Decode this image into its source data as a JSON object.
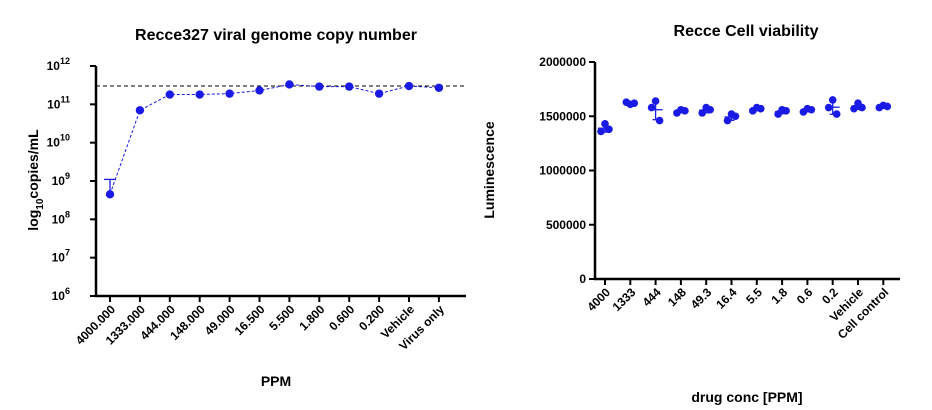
{
  "chart_data": [
    {
      "type": "line",
      "title": "Recce327 viral genome copy number",
      "xlabel": "PPM",
      "ylabel": "log10copies/mL",
      "ylabel_prefix": "log",
      "ylabel_sub": "10",
      "ylabel_suffix": "copies/mL",
      "y_scale": "log",
      "ylim": [
        1000000,
        1000000000000
      ],
      "y_ticks": [
        {
          "value": 1000000,
          "base": "10",
          "exp": "6"
        },
        {
          "value": 10000000,
          "base": "10",
          "exp": "7"
        },
        {
          "value": 100000000,
          "base": "10",
          "exp": "8"
        },
        {
          "value": 1000000000,
          "base": "10",
          "exp": "9"
        },
        {
          "value": 10000000000,
          "base": "10",
          "exp": "10"
        },
        {
          "value": 100000000000,
          "base": "10",
          "exp": "11"
        },
        {
          "value": 1000000000000,
          "base": "10",
          "exp": "12"
        }
      ],
      "categories": [
        "4000.000",
        "1333.000",
        "444.000",
        "148.000",
        "49.000",
        "16.500",
        "5.500",
        "1.800",
        "0.600",
        "0.200",
        "Vehicle",
        "Virus only"
      ],
      "values": [
        450000000,
        70000000000,
        180000000000,
        180000000000,
        190000000000,
        230000000000,
        330000000000,
        290000000000,
        290000000000,
        190000000000,
        300000000000,
        270000000000
      ],
      "error_upper": [
        1100000000,
        null,
        null,
        null,
        null,
        null,
        null,
        null,
        null,
        null,
        null,
        null
      ],
      "reference_line": 300000000000,
      "grid": false
    },
    {
      "type": "scatter",
      "title": "Recce Cell viability",
      "xlabel": "drug conc [PPM]",
      "ylabel": "Luminescence",
      "ylim": [
        0,
        2000000
      ],
      "y_ticks": [
        "0",
        "500000",
        "1000000",
        "1500000",
        "2000000"
      ],
      "y_tick_values": [
        0,
        500000,
        1000000,
        1500000,
        2000000
      ],
      "categories": [
        "4000",
        "1333",
        "444",
        "148",
        "49.3",
        "16.4",
        "5.5",
        "1.8",
        "0.6",
        "0.2",
        "Vehicle",
        "Cell control"
      ],
      "replicates": [
        [
          1430000,
          1360000,
          1380000
        ],
        [
          1610000,
          1630000,
          1620000
        ],
        [
          1640000,
          1580000,
          1460000
        ],
        [
          1560000,
          1530000,
          1550000
        ],
        [
          1580000,
          1530000,
          1560000
        ],
        [
          1520000,
          1460000,
          1500000
        ],
        [
          1580000,
          1550000,
          1570000
        ],
        [
          1560000,
          1520000,
          1550000
        ],
        [
          1570000,
          1540000,
          1560000
        ],
        [
          1650000,
          1580000,
          1520000
        ],
        [
          1620000,
          1570000,
          1580000
        ],
        [
          1600000,
          1580000,
          1590000
        ]
      ],
      "grid": false
    }
  ]
}
